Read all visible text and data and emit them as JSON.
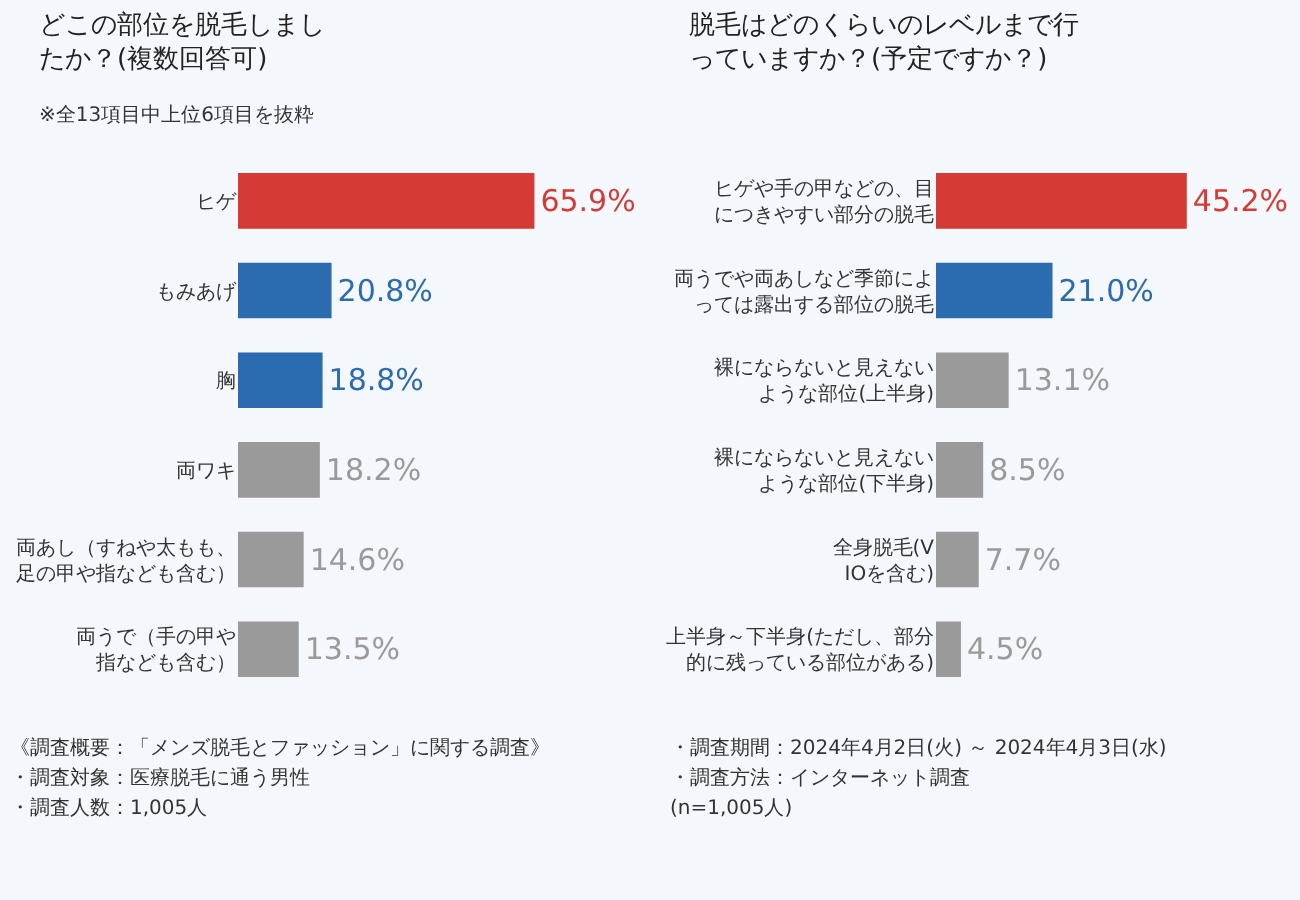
{
  "chart_data": [
    {
      "type": "bar",
      "orientation": "horizontal",
      "title": "どこの部位を脱毛しましたか？(複数回答可)",
      "subtitle": "※全13項目中上位6項目を抜粋",
      "categories": [
        "ヒゲ",
        "もみあげ",
        "胸",
        "両ワキ",
        "両あし（すねや太もも、足の甲や指なども含む）",
        "両うで（手の甲や指なども含む）"
      ],
      "values": [
        65.9,
        20.8,
        18.8,
        18.2,
        14.6,
        13.5
      ],
      "value_labels": [
        "65.9%",
        "20.8%",
        "18.8%",
        "18.2%",
        "14.6%",
        "13.5%"
      ],
      "colors": [
        "#d63a35",
        "#2b6cb0",
        "#2b6cb0",
        "#9a9a9a",
        "#9a9a9a",
        "#9a9a9a"
      ],
      "tick_labels": "y",
      "grid": false,
      "annotations": [
        "《調査概要：「メンズ脱毛とファッション」に関する調査》",
        "・調査期間：2024年4月2日(火) ～ 2024年4月3日(水)",
        "・調査対象：医療脱毛に通う男性",
        "・調査方法：インターネット調査",
        "・調査人数：1,005人"
      ]
    },
    {
      "type": "bar",
      "orientation": "horizontal",
      "title": "脱毛はどのくらいのレベルまで行っていますか？(予定ですか？)",
      "categories": [
        "ヒゲや手の甲などの、目につきやすい部分の脱毛",
        "両うでや両あしなど季節によっては露出する部位の脱毛",
        "裸にならないと見えないような部位(上半身)",
        "裸にならないと見えないような部位(下半身)",
        "全身脱毛(VIOを含む)",
        "上半身～下半身(ただし、部分的に残っている部位がある)"
      ],
      "values": [
        45.2,
        21.0,
        13.1,
        8.5,
        7.7,
        4.5
      ],
      "value_labels": [
        "45.2%",
        "21.0%",
        "13.1%",
        "8.5%",
        "7.7%",
        "4.5%"
      ],
      "colors": [
        "#d63a35",
        "#2b6cb0",
        "#9a9a9a",
        "#9a9a9a",
        "#9a9a9a",
        "#9a9a9a"
      ],
      "tick_labels": "y",
      "grid": false,
      "annotations": [
        "(n=1,005人)"
      ]
    }
  ]
}
